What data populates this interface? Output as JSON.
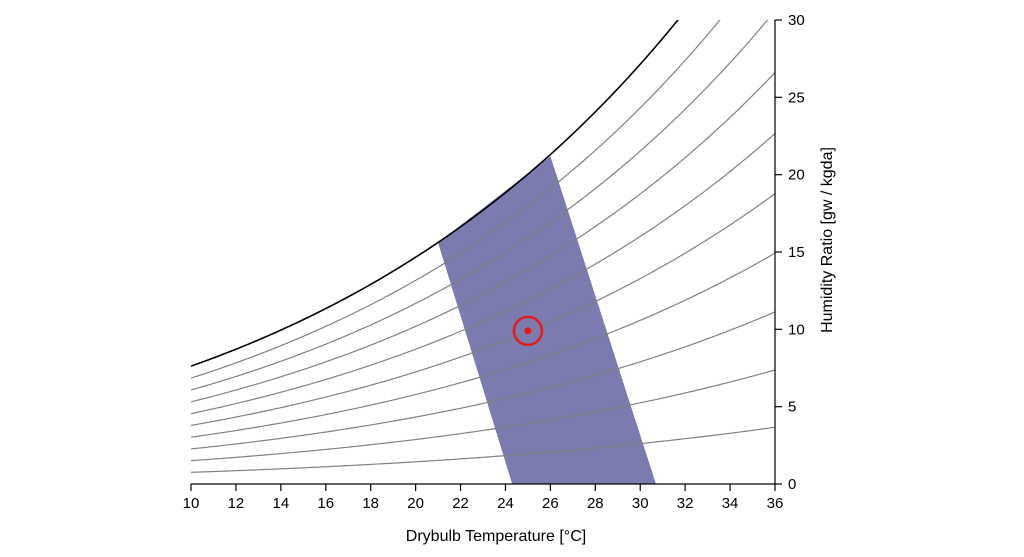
{
  "chart_data": {
    "type": "line",
    "chart_kind": "psychrometric",
    "title": "",
    "xlabel": "Drybulb Temperature [°C]",
    "ylabel": "Humidity Ratio [gw / kgda]",
    "xlim": [
      10,
      36
    ],
    "ylim": [
      0,
      30
    ],
    "xticks": [
      10,
      12,
      14,
      16,
      18,
      20,
      22,
      24,
      26,
      28,
      30,
      32,
      34,
      36
    ],
    "yticks": [
      0,
      5,
      10,
      15,
      20,
      25,
      30
    ],
    "y_axis_side": "right",
    "grid": false,
    "legend": "none",
    "saturation_curve_color": "#000000",
    "rh_curve_color": "#808080",
    "rh_curves_percent": [
      10,
      20,
      30,
      40,
      50,
      60,
      70,
      80,
      90
    ],
    "comfort_zone": {
      "color": "#7b7bb0",
      "polygon": [
        [
          24.3,
          0
        ],
        [
          30.7,
          0
        ],
        [
          26.0,
          21.2
        ],
        [
          21.0,
          15.6
        ]
      ]
    },
    "state_point": {
      "x": 25,
      "y": 9.9,
      "color": "#e31a1c"
    }
  }
}
